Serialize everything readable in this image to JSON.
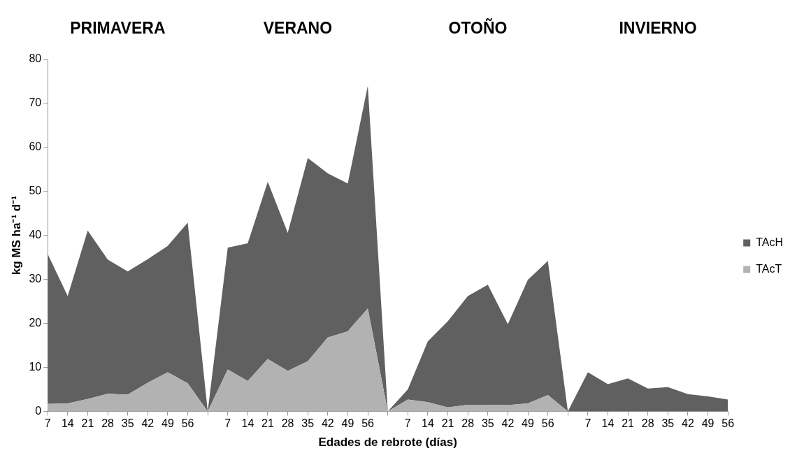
{
  "chart_data": {
    "type": "area",
    "stacked": true,
    "xlabel": "Edades de rebrote (días)",
    "ylabel": "kg MS ha⁻¹ d⁻¹",
    "annotations": [
      "PRIMAVERA",
      "VERANO",
      "OTOÑO",
      "INVIERNO"
    ],
    "categories": [
      "7",
      "14",
      "21",
      "28",
      "35",
      "42",
      "49",
      "56",
      null,
      "7",
      "14",
      "21",
      "28",
      "35",
      "42",
      "49",
      "56",
      null,
      "7",
      "14",
      "21",
      "28",
      "35",
      "42",
      "49",
      "56",
      null,
      "7",
      "14",
      "21",
      "28",
      "35",
      "42",
      "49",
      "56"
    ],
    "series": [
      {
        "name": "TAcT",
        "color": "#b2b2b2",
        "values": [
          1.7,
          1.8,
          2.8,
          4.0,
          3.8,
          6.5,
          8.9,
          6.4,
          0,
          9.5,
          6.9,
          11.9,
          9.2,
          11.4,
          16.8,
          18.2,
          23.4,
          0,
          2.7,
          2.1,
          0.9,
          1.5,
          1.5,
          1.4,
          1.8,
          3.7,
          0,
          0,
          0,
          0,
          0,
          0,
          0,
          0,
          0
        ]
      },
      {
        "name": "TAcH",
        "color": "#606060",
        "values": [
          34.1,
          24.4,
          38.3,
          30.5,
          28.0,
          28.1,
          28.7,
          36.5,
          0,
          27.7,
          31.3,
          40.3,
          31.4,
          46.2,
          37.3,
          33.6,
          50.6,
          0,
          2.3,
          13.8,
          19.6,
          24.7,
          27.3,
          18.4,
          28.1,
          30.5,
          0,
          8.9,
          6.2,
          7.5,
          5.2,
          5.5,
          3.9,
          3.4,
          2.7
        ]
      }
    ],
    "ylim": [
      0,
      80
    ],
    "yticks": [
      0,
      10,
      20,
      30,
      40,
      50,
      60,
      70,
      80
    ],
    "grid": false,
    "legend": "right"
  }
}
